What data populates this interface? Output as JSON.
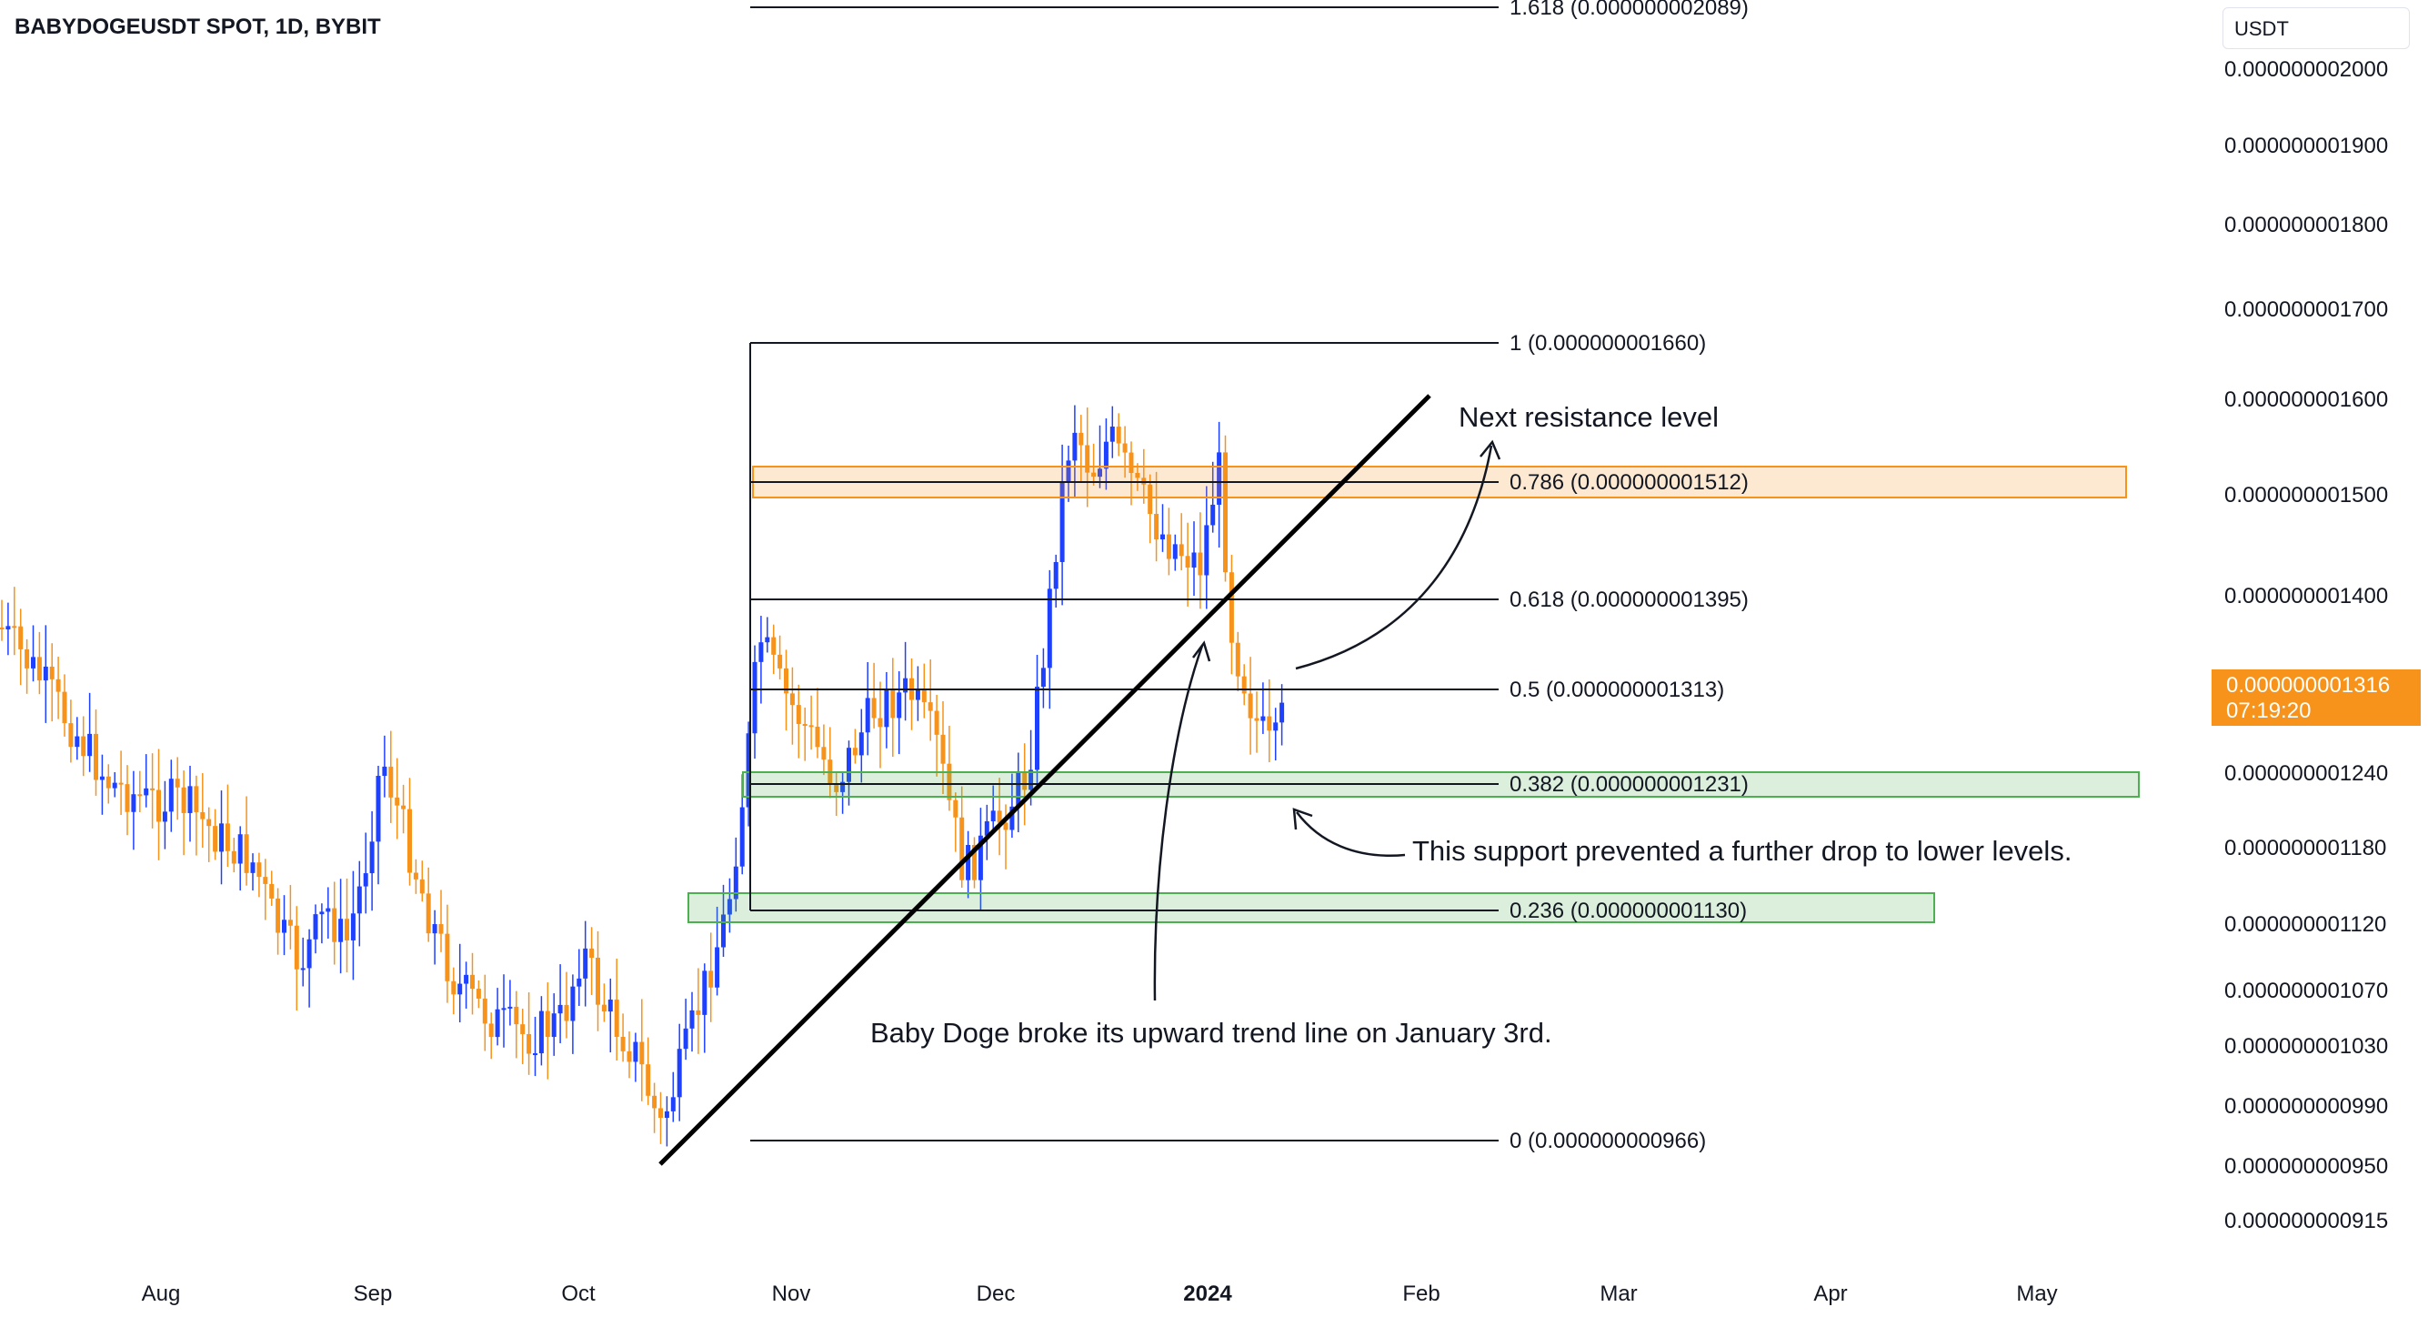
{
  "header": {
    "symbol_title": "BABYDOGEUSDT SPOT, 1D, BYBIT"
  },
  "price_scale": {
    "unit": "USDT"
  },
  "current_price": {
    "value": "0.000000001316",
    "countdown": "07:19:20",
    "color": "#f7931a"
  },
  "colors": {
    "up": "#1e40ff",
    "down": "#f7931a",
    "trend": "#000000",
    "fib": "#131722",
    "resistance_zone": "#f7931a",
    "support_zone": "#4caf50"
  },
  "chart_data": {
    "type": "candlestick",
    "title": "BABYDOGEUSDT SPOT, 1D, BYBIT",
    "y_axis": {
      "ticks": [
        "0.000000002000",
        "0.000000001900",
        "0.000000001800",
        "0.000000001700",
        "0.000000001600",
        "0.000000001500",
        "0.000000001400",
        "0.000000001240",
        "0.000000001180",
        "0.000000001120",
        "0.000000001070",
        "0.000000001030",
        "0.000000000990",
        "0.000000000950",
        "0.000000000915"
      ],
      "scale": "log"
    },
    "x_axis": {
      "ticks": [
        "Aug",
        "Sep",
        "Oct",
        "Nov",
        "Dec",
        "2024",
        "Feb",
        "Mar",
        "Apr",
        "May"
      ],
      "bold_tick": "2024"
    },
    "fib_levels": [
      {
        "ratio": "1.618",
        "price": "0.000000002089"
      },
      {
        "ratio": "1",
        "price": "0.000000001660"
      },
      {
        "ratio": "0.786",
        "price": "0.000000001512"
      },
      {
        "ratio": "0.618",
        "price": "0.000000001395"
      },
      {
        "ratio": "0.5",
        "price": "0.000000001313"
      },
      {
        "ratio": "0.382",
        "price": "0.000000001231"
      },
      {
        "ratio": "0.236",
        "price": "0.000000001130"
      },
      {
        "ratio": "0",
        "price": "0.000000000966"
      }
    ],
    "zones": [
      {
        "kind": "resistance",
        "level": "0.786"
      },
      {
        "kind": "support",
        "level": "0.382"
      },
      {
        "kind": "support",
        "level": "0.236"
      }
    ],
    "annotations": [
      "Next resistance level",
      "This support prevented a further drop to lower levels.",
      "Baby Doge broke its upward trend line on January 3rd."
    ]
  }
}
